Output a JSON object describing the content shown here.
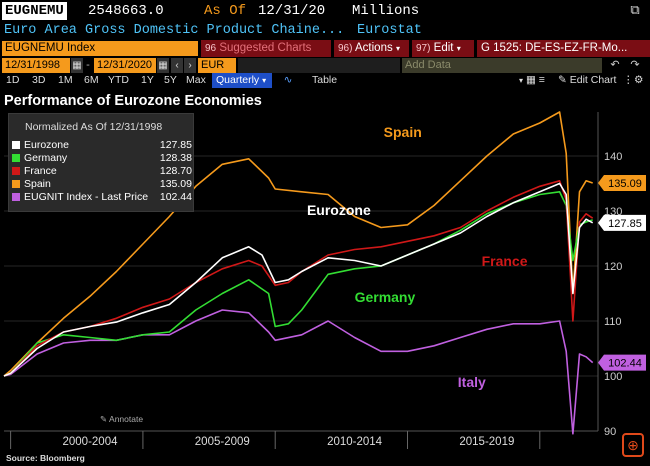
{
  "header": {
    "ticker": "EUGNEMU",
    "price": "2548663.0",
    "as_of_label": "As Of",
    "as_of_date": "12/31/20",
    "units": "Millions",
    "popout_icon": "popout-icon"
  },
  "description": {
    "name": "Euro Area Gross Domestic Product Chaine...",
    "source": "Eurostat"
  },
  "toolbar": {
    "ticker_value": "EUGNEMU Index",
    "suggested": "Suggested Charts",
    "suggested_num": "96",
    "actions_num": "96)",
    "actions": "Actions",
    "edit_num": "97)",
    "edit": "Edit",
    "group": "G 1525: DE-ES-EZ-FR-Mo..."
  },
  "date_range": {
    "start": "12/31/1998",
    "end": "12/31/2020",
    "currency": "EUR",
    "add_data_placeholder": "Add Data"
  },
  "periods": {
    "items": [
      "1D",
      "3D",
      "1M",
      "6M",
      "YTD",
      "1Y",
      "5Y",
      "Max"
    ],
    "frequency": "Quarterly",
    "table": "Table",
    "edit_chart": "Edit Chart"
  },
  "chart_data": {
    "type": "line",
    "title": "Performance of Eurozone Economies",
    "xlabel": "",
    "ylabel": "",
    "ylim": [
      90,
      148
    ],
    "yticks": [
      90,
      100,
      110,
      120,
      130,
      140
    ],
    "xlim": [
      1998.75,
      2021.2
    ],
    "x_category_labels": [
      "2000-2004",
      "2005-2009",
      "2010-2014",
      "2015-2019"
    ],
    "x_category_centers": [
      2002,
      2007,
      2012,
      2017
    ],
    "x_dividers": [
      1999.0,
      2004.0,
      2009.0,
      2014.0,
      2019.0
    ],
    "legend": {
      "title": "Normalized As Of 12/31/1998",
      "entries": [
        {
          "name": "Eurozone",
          "value": "127.85"
        },
        {
          "name": "Germany",
          "value": "128.38"
        },
        {
          "name": "France",
          "value": "128.70"
        },
        {
          "name": "Spain",
          "value": "135.09"
        },
        {
          "name": "EUGNIT Index - Last Price",
          "value": "102.44"
        }
      ]
    },
    "series": [
      {
        "name": "Eurozone",
        "color": "#ffffff",
        "label": "Eurozone",
        "last": "127.85",
        "last_value": 127.85,
        "points": [
          [
            1998.75,
            100
          ],
          [
            1999,
            100.5
          ],
          [
            2000,
            105
          ],
          [
            2001,
            108
          ],
          [
            2002,
            109
          ],
          [
            2003,
            109.8
          ],
          [
            2004,
            111.5
          ],
          [
            2005,
            113
          ],
          [
            2006,
            117
          ],
          [
            2007,
            121.5
          ],
          [
            2008,
            123.5
          ],
          [
            2008.5,
            122
          ],
          [
            2009,
            117
          ],
          [
            2009.5,
            117.5
          ],
          [
            2010,
            119
          ],
          [
            2011,
            121.5
          ],
          [
            2012,
            121
          ],
          [
            2013,
            120
          ],
          [
            2014,
            122
          ],
          [
            2015,
            124
          ],
          [
            2016,
            126
          ],
          [
            2017,
            129
          ],
          [
            2018,
            131.5
          ],
          [
            2019,
            133.5
          ],
          [
            2019.75,
            135
          ],
          [
            2020,
            133
          ],
          [
            2020.25,
            115
          ],
          [
            2020.5,
            127
          ],
          [
            2020.75,
            128.5
          ],
          [
            2021,
            127.85
          ]
        ]
      },
      {
        "name": "Germany",
        "color": "#33dd33",
        "label": "Germany",
        "last": "128.38",
        "last_value": 128.38,
        "points": [
          [
            1998.75,
            100
          ],
          [
            1999,
            100.5
          ],
          [
            2000,
            106
          ],
          [
            2001,
            107.5
          ],
          [
            2002,
            107
          ],
          [
            2003,
            106.5
          ],
          [
            2004,
            107.5
          ],
          [
            2005,
            108
          ],
          [
            2006,
            112
          ],
          [
            2007,
            115
          ],
          [
            2008,
            117.5
          ],
          [
            2008.75,
            115
          ],
          [
            2009,
            109
          ],
          [
            2009.5,
            109.5
          ],
          [
            2010,
            112
          ],
          [
            2011,
            118.5
          ],
          [
            2012,
            119.5
          ],
          [
            2013,
            120
          ],
          [
            2014,
            122
          ],
          [
            2015,
            124
          ],
          [
            2016,
            126.5
          ],
          [
            2017,
            129.5
          ],
          [
            2018,
            131.5
          ],
          [
            2019,
            133
          ],
          [
            2019.75,
            133.5
          ],
          [
            2020,
            131
          ],
          [
            2020.25,
            121
          ],
          [
            2020.5,
            127.5
          ],
          [
            2020.75,
            128
          ],
          [
            2021,
            128.38
          ]
        ]
      },
      {
        "name": "France",
        "color": "#d01818",
        "label": "France",
        "last": "128.70",
        "last_value": 128.7,
        "points": [
          [
            1998.75,
            100
          ],
          [
            1999,
            100.5
          ],
          [
            2000,
            105.5
          ],
          [
            2001,
            108
          ],
          [
            2002,
            109
          ],
          [
            2003,
            110.5
          ],
          [
            2004,
            112.5
          ],
          [
            2005,
            114
          ],
          [
            2006,
            117
          ],
          [
            2007,
            119.5
          ],
          [
            2008,
            121
          ],
          [
            2008.5,
            120
          ],
          [
            2009,
            116.5
          ],
          [
            2009.5,
            117
          ],
          [
            2010,
            119
          ],
          [
            2011,
            122
          ],
          [
            2012,
            123
          ],
          [
            2013,
            123.5
          ],
          [
            2014,
            124.5
          ],
          [
            2015,
            125.5
          ],
          [
            2016,
            127
          ],
          [
            2017,
            130
          ],
          [
            2018,
            132.5
          ],
          [
            2019,
            134.5
          ],
          [
            2019.75,
            135.5
          ],
          [
            2020,
            132
          ],
          [
            2020.25,
            110
          ],
          [
            2020.5,
            128
          ],
          [
            2020.75,
            129.5
          ],
          [
            2021,
            128.7
          ]
        ]
      },
      {
        "name": "Spain",
        "color": "#f59a1c",
        "label": "Spain",
        "last": "135.09",
        "last_value": 135.09,
        "points": [
          [
            1998.75,
            100
          ],
          [
            1999,
            101
          ],
          [
            2000,
            106
          ],
          [
            2001,
            110.5
          ],
          [
            2002,
            114.5
          ],
          [
            2003,
            119
          ],
          [
            2004,
            124
          ],
          [
            2005,
            129
          ],
          [
            2006,
            134.5
          ],
          [
            2007,
            138.5
          ],
          [
            2008,
            139.5
          ],
          [
            2008.75,
            136
          ],
          [
            2009,
            134
          ],
          [
            2010,
            133.5
          ],
          [
            2011,
            133
          ],
          [
            2012,
            129
          ],
          [
            2013,
            127
          ],
          [
            2014,
            127.5
          ],
          [
            2015,
            131
          ],
          [
            2016,
            135.5
          ],
          [
            2017,
            140
          ],
          [
            2018,
            144
          ],
          [
            2019,
            146
          ],
          [
            2019.75,
            148
          ],
          [
            2020,
            140.5
          ],
          [
            2020.25,
            115
          ],
          [
            2020.5,
            133.5
          ],
          [
            2020.75,
            135.5
          ],
          [
            2021,
            135.09
          ]
        ]
      },
      {
        "name": "Italy",
        "color": "#c060e0",
        "label": "Italy",
        "last": "102.44",
        "last_value": 102.44,
        "points": [
          [
            1998.75,
            100
          ],
          [
            1999,
            100.3
          ],
          [
            2000,
            104
          ],
          [
            2001,
            106
          ],
          [
            2002,
            106.5
          ],
          [
            2003,
            106.5
          ],
          [
            2004,
            107.5
          ],
          [
            2005,
            107.5
          ],
          [
            2006,
            110
          ],
          [
            2007,
            112
          ],
          [
            2008,
            111.5
          ],
          [
            2008.75,
            108
          ],
          [
            2009,
            106.5
          ],
          [
            2010,
            107.5
          ],
          [
            2011,
            110
          ],
          [
            2012,
            107
          ],
          [
            2013,
            104.5
          ],
          [
            2014,
            104.5
          ],
          [
            2015,
            105.5
          ],
          [
            2016,
            107
          ],
          [
            2017,
            108.5
          ],
          [
            2018,
            109.5
          ],
          [
            2019,
            109.5
          ],
          [
            2019.75,
            110
          ],
          [
            2020,
            104.5
          ],
          [
            2020.25,
            89.5
          ],
          [
            2020.5,
            104
          ],
          [
            2020.75,
            103.5
          ],
          [
            2021,
            102.44
          ]
        ]
      }
    ],
    "annotate_label": "Annotate",
    "source": "Source: Bloomberg"
  },
  "colors": {
    "accent_orange": "#f59a1c",
    "bloomberg_red": "#7a0d14",
    "blue": "#1e4fc8"
  }
}
